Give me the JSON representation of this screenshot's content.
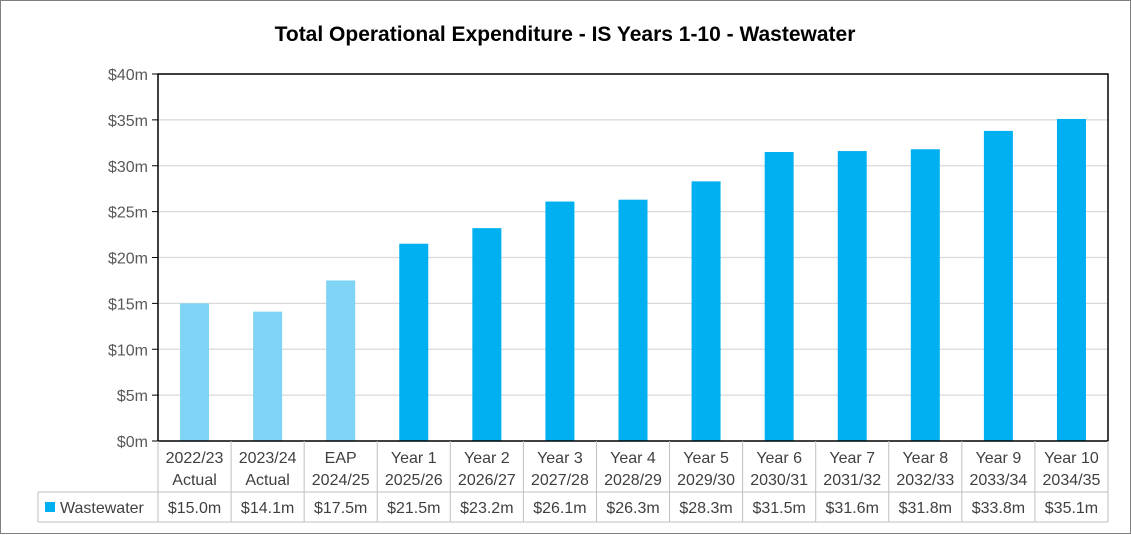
{
  "chart_data": {
    "type": "bar",
    "title": "Total Operational Expenditure - IS Years 1-10 - Wastewater",
    "xlabel": "",
    "ylabel": "",
    "ylim": [
      0,
      40
    ],
    "yticks": [
      "$0m",
      "$5m",
      "$10m",
      "$15m",
      "$20m",
      "$25m",
      "$30m",
      "$35m",
      "$40m"
    ],
    "grid": true,
    "categories": [
      [
        "2022/23",
        "Actual"
      ],
      [
        "2023/24",
        "Actual"
      ],
      [
        "EAP",
        "2024/25"
      ],
      [
        "Year 1",
        "2025/26"
      ],
      [
        "Year 2",
        "2026/27"
      ],
      [
        "Year 3",
        "2027/28"
      ],
      [
        "Year 4",
        "2028/29"
      ],
      [
        "Year 5",
        "2029/30"
      ],
      [
        "Year 6",
        "2030/31"
      ],
      [
        "Year 7",
        "2031/32"
      ],
      [
        "Year 8",
        "2032/33"
      ],
      [
        "Year 9",
        "2033/34"
      ],
      [
        "Year 10",
        "2034/35"
      ]
    ],
    "series": [
      {
        "name": "Wastewater",
        "values": [
          15.0,
          14.1,
          17.5,
          21.5,
          23.2,
          26.1,
          26.3,
          28.3,
          31.5,
          31.6,
          31.8,
          33.8,
          35.1
        ],
        "labels": [
          "$15.0m",
          "$14.1m",
          "$17.5m",
          "$21.5m",
          "$23.2m",
          "$26.1m",
          "$26.3m",
          "$28.3m",
          "$31.5m",
          "$31.6m",
          "$31.8m",
          "$33.8m",
          "$35.1m"
        ]
      }
    ],
    "legend": "data-table",
    "colors": {
      "historic": "#7fd4f5",
      "forecast": "#00b0f0",
      "grid": "#d9d9d9",
      "axis": "#000000",
      "table": "#bfbfbf"
    },
    "historic_count": 3
  }
}
